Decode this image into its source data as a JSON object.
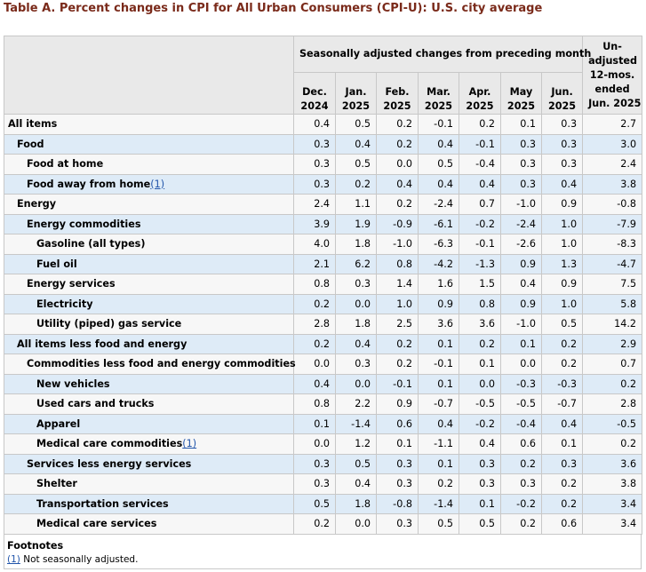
{
  "title": "Table A. Percent changes in CPI for All Urban Consumers (CPI-U): U.S. city average",
  "header": {
    "group_label": "Seasonally adjusted changes from preceding month",
    "months": [
      {
        "line1": "Dec.",
        "line2": "2024"
      },
      {
        "line1": "Jan.",
        "line2": "2025"
      },
      {
        "line1": "Feb.",
        "line2": "2025"
      },
      {
        "line1": "Mar.",
        "line2": "2025"
      },
      {
        "line1": "Apr.",
        "line2": "2025"
      },
      {
        "line1": "May",
        "line2": "2025"
      },
      {
        "line1": "Jun.",
        "line2": "2025"
      }
    ],
    "unadjusted": [
      "Un-",
      "adjusted",
      "12-mos.",
      "ended",
      "Jun. 2025"
    ]
  },
  "rows": [
    {
      "label": "All items",
      "footnote": "",
      "indent": 0,
      "values": [
        "0.4",
        "0.5",
        "0.2",
        "-0.1",
        "0.2",
        "0.1",
        "0.3",
        "2.7"
      ]
    },
    {
      "label": "Food",
      "footnote": "",
      "indent": 1,
      "values": [
        "0.3",
        "0.4",
        "0.2",
        "0.4",
        "-0.1",
        "0.3",
        "0.3",
        "3.0"
      ]
    },
    {
      "label": "Food at home",
      "footnote": "",
      "indent": 2,
      "values": [
        "0.3",
        "0.5",
        "0.0",
        "0.5",
        "-0.4",
        "0.3",
        "0.3",
        "2.4"
      ]
    },
    {
      "label": "Food away from home",
      "footnote": "(1)",
      "indent": 2,
      "values": [
        "0.3",
        "0.2",
        "0.4",
        "0.4",
        "0.4",
        "0.3",
        "0.4",
        "3.8"
      ]
    },
    {
      "label": "Energy",
      "footnote": "",
      "indent": 1,
      "values": [
        "2.4",
        "1.1",
        "0.2",
        "-2.4",
        "0.7",
        "-1.0",
        "0.9",
        "-0.8"
      ]
    },
    {
      "label": "Energy commodities",
      "footnote": "",
      "indent": 2,
      "values": [
        "3.9",
        "1.9",
        "-0.9",
        "-6.1",
        "-0.2",
        "-2.4",
        "1.0",
        "-7.9"
      ]
    },
    {
      "label": "Gasoline (all types)",
      "footnote": "",
      "indent": 3,
      "values": [
        "4.0",
        "1.8",
        "-1.0",
        "-6.3",
        "-0.1",
        "-2.6",
        "1.0",
        "-8.3"
      ]
    },
    {
      "label": "Fuel oil",
      "footnote": "",
      "indent": 3,
      "values": [
        "2.1",
        "6.2",
        "0.8",
        "-4.2",
        "-1.3",
        "0.9",
        "1.3",
        "-4.7"
      ]
    },
    {
      "label": "Energy services",
      "footnote": "",
      "indent": 2,
      "values": [
        "0.8",
        "0.3",
        "1.4",
        "1.6",
        "1.5",
        "0.4",
        "0.9",
        "7.5"
      ]
    },
    {
      "label": "Electricity",
      "footnote": "",
      "indent": 3,
      "values": [
        "0.2",
        "0.0",
        "1.0",
        "0.9",
        "0.8",
        "0.9",
        "1.0",
        "5.8"
      ]
    },
    {
      "label": "Utility (piped) gas service",
      "footnote": "",
      "indent": 3,
      "values": [
        "2.8",
        "1.8",
        "2.5",
        "3.6",
        "3.6",
        "-1.0",
        "0.5",
        "14.2"
      ]
    },
    {
      "label": "All items less food and energy",
      "footnote": "",
      "indent": 1,
      "values": [
        "0.2",
        "0.4",
        "0.2",
        "0.1",
        "0.2",
        "0.1",
        "0.2",
        "2.9"
      ]
    },
    {
      "label": "Commodities less food and energy commodities",
      "footnote": "",
      "indent": 2,
      "values": [
        "0.0",
        "0.3",
        "0.2",
        "-0.1",
        "0.1",
        "0.0",
        "0.2",
        "0.7"
      ]
    },
    {
      "label": "New vehicles",
      "footnote": "",
      "indent": 3,
      "values": [
        "0.4",
        "0.0",
        "-0.1",
        "0.1",
        "0.0",
        "-0.3",
        "-0.3",
        "0.2"
      ]
    },
    {
      "label": "Used cars and trucks",
      "footnote": "",
      "indent": 3,
      "values": [
        "0.8",
        "2.2",
        "0.9",
        "-0.7",
        "-0.5",
        "-0.5",
        "-0.7",
        "2.8"
      ]
    },
    {
      "label": "Apparel",
      "footnote": "",
      "indent": 3,
      "values": [
        "0.1",
        "-1.4",
        "0.6",
        "0.4",
        "-0.2",
        "-0.4",
        "0.4",
        "-0.5"
      ]
    },
    {
      "label": "Medical care commodities",
      "footnote": "(1)",
      "indent": 3,
      "values": [
        "0.0",
        "1.2",
        "0.1",
        "-1.1",
        "0.4",
        "0.6",
        "0.1",
        "0.2"
      ]
    },
    {
      "label": "Services less energy services",
      "footnote": "",
      "indent": 2,
      "values": [
        "0.3",
        "0.5",
        "0.3",
        "0.1",
        "0.3",
        "0.2",
        "0.3",
        "3.6"
      ]
    },
    {
      "label": "Shelter",
      "footnote": "",
      "indent": 3,
      "values": [
        "0.3",
        "0.4",
        "0.3",
        "0.2",
        "0.3",
        "0.3",
        "0.2",
        "3.8"
      ]
    },
    {
      "label": "Transportation services",
      "footnote": "",
      "indent": 3,
      "values": [
        "0.5",
        "1.8",
        "-0.8",
        "-1.4",
        "0.1",
        "-0.2",
        "0.2",
        "3.4"
      ]
    },
    {
      "label": "Medical care services",
      "footnote": "",
      "indent": 3,
      "values": [
        "0.2",
        "0.0",
        "0.3",
        "0.5",
        "0.5",
        "0.2",
        "0.6",
        "3.4"
      ]
    }
  ],
  "footnotes": {
    "title": "Footnotes",
    "items": [
      {
        "marker": "(1)",
        "text": " Not seasonally adjusted."
      }
    ]
  }
}
